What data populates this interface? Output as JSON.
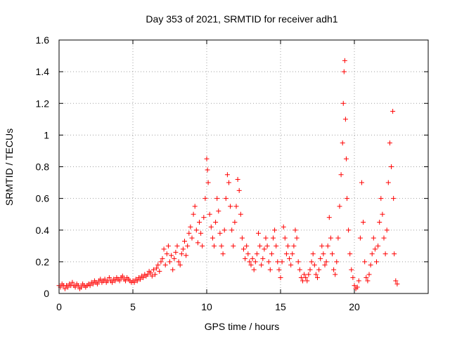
{
  "chart_data": {
    "type": "scatter",
    "title": "Day 353 of 2021, SRMTID for receiver adh1",
    "xlabel": "GPS time / hours",
    "ylabel": "SRMTID / TECUs",
    "xlim": [
      0,
      25
    ],
    "ylim": [
      0,
      1.6
    ],
    "xticks": [
      0,
      5,
      10,
      15,
      20
    ],
    "xtick_labels": [
      "0",
      "5",
      "10",
      "15",
      "20"
    ],
    "yticks": [
      0,
      0.2,
      0.4,
      0.6,
      0.8,
      1.0,
      1.2,
      1.4,
      1.6
    ],
    "ytick_labels": [
      "0",
      "0.2",
      "0.4",
      "0.6",
      "0.8",
      "1",
      "1.2",
      "1.4",
      "1.6"
    ],
    "grid": true,
    "marker": "+",
    "color": "#ff0000",
    "series": [
      {
        "name": "SRMTID",
        "points": [
          [
            0.0,
            0.05
          ],
          [
            0.1,
            0.04
          ],
          [
            0.2,
            0.06
          ],
          [
            0.3,
            0.05
          ],
          [
            0.4,
            0.03
          ],
          [
            0.5,
            0.05
          ],
          [
            0.6,
            0.04
          ],
          [
            0.7,
            0.06
          ],
          [
            0.8,
            0.05
          ],
          [
            0.9,
            0.07
          ],
          [
            1.0,
            0.05
          ],
          [
            1.1,
            0.04
          ],
          [
            1.2,
            0.06
          ],
          [
            1.3,
            0.05
          ],
          [
            1.4,
            0.03
          ],
          [
            1.5,
            0.04
          ],
          [
            1.6,
            0.06
          ],
          [
            1.7,
            0.05
          ],
          [
            1.8,
            0.04
          ],
          [
            1.9,
            0.05
          ],
          [
            2.0,
            0.06
          ],
          [
            2.1,
            0.05
          ],
          [
            2.2,
            0.07
          ],
          [
            2.3,
            0.06
          ],
          [
            2.4,
            0.08
          ],
          [
            2.5,
            0.07
          ],
          [
            2.6,
            0.06
          ],
          [
            2.7,
            0.08
          ],
          [
            2.8,
            0.09
          ],
          [
            2.9,
            0.07
          ],
          [
            3.0,
            0.08
          ],
          [
            3.1,
            0.09
          ],
          [
            3.2,
            0.07
          ],
          [
            3.3,
            0.08
          ],
          [
            3.4,
            0.1
          ],
          [
            3.5,
            0.08
          ],
          [
            3.6,
            0.07
          ],
          [
            3.7,
            0.09
          ],
          [
            3.8,
            0.08
          ],
          [
            3.9,
            0.1
          ],
          [
            4.0,
            0.09
          ],
          [
            4.1,
            0.08
          ],
          [
            4.2,
            0.1
          ],
          [
            4.3,
            0.11
          ],
          [
            4.4,
            0.09
          ],
          [
            4.5,
            0.08
          ],
          [
            4.6,
            0.1
          ],
          [
            4.7,
            0.09
          ],
          [
            4.8,
            0.08
          ],
          [
            4.9,
            0.07
          ],
          [
            5.0,
            0.08
          ],
          [
            5.1,
            0.07
          ],
          [
            5.2,
            0.09
          ],
          [
            5.3,
            0.08
          ],
          [
            5.4,
            0.1
          ],
          [
            5.5,
            0.09
          ],
          [
            5.6,
            0.11
          ],
          [
            5.7,
            0.1
          ],
          [
            5.8,
            0.12
          ],
          [
            5.9,
            0.11
          ],
          [
            6.0,
            0.12
          ],
          [
            6.1,
            0.14
          ],
          [
            6.2,
            0.13
          ],
          [
            6.3,
            0.11
          ],
          [
            6.4,
            0.15
          ],
          [
            6.5,
            0.12
          ],
          [
            6.6,
            0.16
          ],
          [
            6.7,
            0.18
          ],
          [
            6.8,
            0.14
          ],
          [
            6.9,
            0.2
          ],
          [
            7.0,
            0.22
          ],
          [
            7.1,
            0.28
          ],
          [
            7.2,
            0.18
          ],
          [
            7.3,
            0.25
          ],
          [
            7.4,
            0.3
          ],
          [
            7.5,
            0.2
          ],
          [
            7.6,
            0.24
          ],
          [
            7.7,
            0.15
          ],
          [
            7.8,
            0.22
          ],
          [
            7.9,
            0.26
          ],
          [
            8.0,
            0.3
          ],
          [
            8.1,
            0.2
          ],
          [
            8.2,
            0.18
          ],
          [
            8.3,
            0.25
          ],
          [
            8.4,
            0.28
          ],
          [
            8.5,
            0.33
          ],
          [
            8.6,
            0.24
          ],
          [
            8.7,
            0.3
          ],
          [
            8.8,
            0.38
          ],
          [
            8.9,
            0.42
          ],
          [
            9.0,
            0.35
          ],
          [
            9.1,
            0.5
          ],
          [
            9.2,
            0.55
          ],
          [
            9.3,
            0.4
          ],
          [
            9.4,
            0.32
          ],
          [
            9.5,
            0.45
          ],
          [
            9.6,
            0.38
          ],
          [
            9.7,
            0.3
          ],
          [
            9.8,
            0.48
          ],
          [
            9.9,
            0.6
          ],
          [
            10.0,
            0.85
          ],
          [
            10.05,
            0.78
          ],
          [
            10.1,
            0.7
          ],
          [
            10.2,
            0.5
          ],
          [
            10.3,
            0.42
          ],
          [
            10.4,
            0.35
          ],
          [
            10.5,
            0.3
          ],
          [
            10.6,
            0.45
          ],
          [
            10.7,
            0.6
          ],
          [
            10.8,
            0.52
          ],
          [
            10.9,
            0.38
          ],
          [
            11.0,
            0.3
          ],
          [
            11.1,
            0.25
          ],
          [
            11.2,
            0.4
          ],
          [
            11.3,
            0.6
          ],
          [
            11.4,
            0.75
          ],
          [
            11.5,
            0.7
          ],
          [
            11.6,
            0.55
          ],
          [
            11.7,
            0.4
          ],
          [
            11.8,
            0.3
          ],
          [
            11.9,
            0.45
          ],
          [
            12.0,
            0.55
          ],
          [
            12.1,
            0.72
          ],
          [
            12.2,
            0.65
          ],
          [
            12.3,
            0.5
          ],
          [
            12.4,
            0.35
          ],
          [
            12.5,
            0.28
          ],
          [
            12.6,
            0.22
          ],
          [
            12.7,
            0.3
          ],
          [
            12.8,
            0.25
          ],
          [
            12.9,
            0.2
          ],
          [
            13.0,
            0.18
          ],
          [
            13.1,
            0.22
          ],
          [
            13.2,
            0.15
          ],
          [
            13.3,
            0.2
          ],
          [
            13.4,
            0.25
          ],
          [
            13.5,
            0.38
          ],
          [
            13.6,
            0.3
          ],
          [
            13.7,
            0.18
          ],
          [
            13.8,
            0.22
          ],
          [
            13.9,
            0.28
          ],
          [
            14.0,
            0.35
          ],
          [
            14.1,
            0.3
          ],
          [
            14.2,
            0.2
          ],
          [
            14.3,
            0.15
          ],
          [
            14.4,
            0.25
          ],
          [
            14.5,
            0.35
          ],
          [
            14.6,
            0.4
          ],
          [
            14.7,
            0.3
          ],
          [
            14.8,
            0.2
          ],
          [
            14.9,
            0.15
          ],
          [
            15.0,
            0.1
          ],
          [
            15.1,
            0.2
          ],
          [
            15.2,
            0.42
          ],
          [
            15.3,
            0.35
          ],
          [
            15.4,
            0.25
          ],
          [
            15.5,
            0.3
          ],
          [
            15.6,
            0.22
          ],
          [
            15.7,
            0.18
          ],
          [
            15.8,
            0.25
          ],
          [
            15.9,
            0.3
          ],
          [
            16.0,
            0.4
          ],
          [
            16.1,
            0.35
          ],
          [
            16.2,
            0.2
          ],
          [
            16.3,
            0.15
          ],
          [
            16.4,
            0.1
          ],
          [
            16.5,
            0.08
          ],
          [
            16.6,
            0.12
          ],
          [
            16.7,
            0.1
          ],
          [
            16.8,
            0.08
          ],
          [
            16.9,
            0.12
          ],
          [
            17.0,
            0.15
          ],
          [
            17.1,
            0.2
          ],
          [
            17.2,
            0.25
          ],
          [
            17.3,
            0.18
          ],
          [
            17.4,
            0.12
          ],
          [
            17.5,
            0.1
          ],
          [
            17.6,
            0.15
          ],
          [
            17.7,
            0.22
          ],
          [
            17.8,
            0.3
          ],
          [
            17.9,
            0.25
          ],
          [
            18.0,
            0.18
          ],
          [
            18.1,
            0.2
          ],
          [
            18.2,
            0.3
          ],
          [
            18.3,
            0.48
          ],
          [
            18.4,
            0.35
          ],
          [
            18.5,
            0.25
          ],
          [
            18.6,
            0.15
          ],
          [
            18.7,
            0.12
          ],
          [
            18.8,
            0.2
          ],
          [
            18.9,
            0.35
          ],
          [
            19.0,
            0.55
          ],
          [
            19.1,
            0.75
          ],
          [
            19.2,
            0.95
          ],
          [
            19.25,
            1.2
          ],
          [
            19.3,
            1.4
          ],
          [
            19.35,
            1.47
          ],
          [
            19.4,
            1.1
          ],
          [
            19.45,
            0.85
          ],
          [
            19.5,
            0.6
          ],
          [
            19.6,
            0.4
          ],
          [
            19.7,
            0.25
          ],
          [
            19.8,
            0.15
          ],
          [
            19.9,
            0.1
          ],
          [
            20.0,
            0.05
          ],
          [
            20.1,
            0.03
          ],
          [
            20.2,
            0.04
          ],
          [
            20.3,
            0.08
          ],
          [
            20.4,
            0.35
          ],
          [
            20.5,
            0.7
          ],
          [
            20.6,
            0.45
          ],
          [
            20.7,
            0.2
          ],
          [
            20.8,
            0.1
          ],
          [
            20.9,
            0.08
          ],
          [
            21.0,
            0.12
          ],
          [
            21.1,
            0.18
          ],
          [
            21.2,
            0.25
          ],
          [
            21.3,
            0.35
          ],
          [
            21.4,
            0.28
          ],
          [
            21.5,
            0.2
          ],
          [
            21.6,
            0.3
          ],
          [
            21.7,
            0.45
          ],
          [
            21.8,
            0.6
          ],
          [
            21.9,
            0.5
          ],
          [
            22.0,
            0.35
          ],
          [
            22.1,
            0.25
          ],
          [
            22.2,
            0.4
          ],
          [
            22.3,
            0.7
          ],
          [
            22.4,
            0.95
          ],
          [
            22.5,
            0.8
          ],
          [
            22.6,
            1.15
          ],
          [
            22.65,
            0.6
          ],
          [
            22.7,
            0.25
          ],
          [
            22.8,
            0.08
          ],
          [
            22.9,
            0.06
          ]
        ]
      }
    ]
  }
}
